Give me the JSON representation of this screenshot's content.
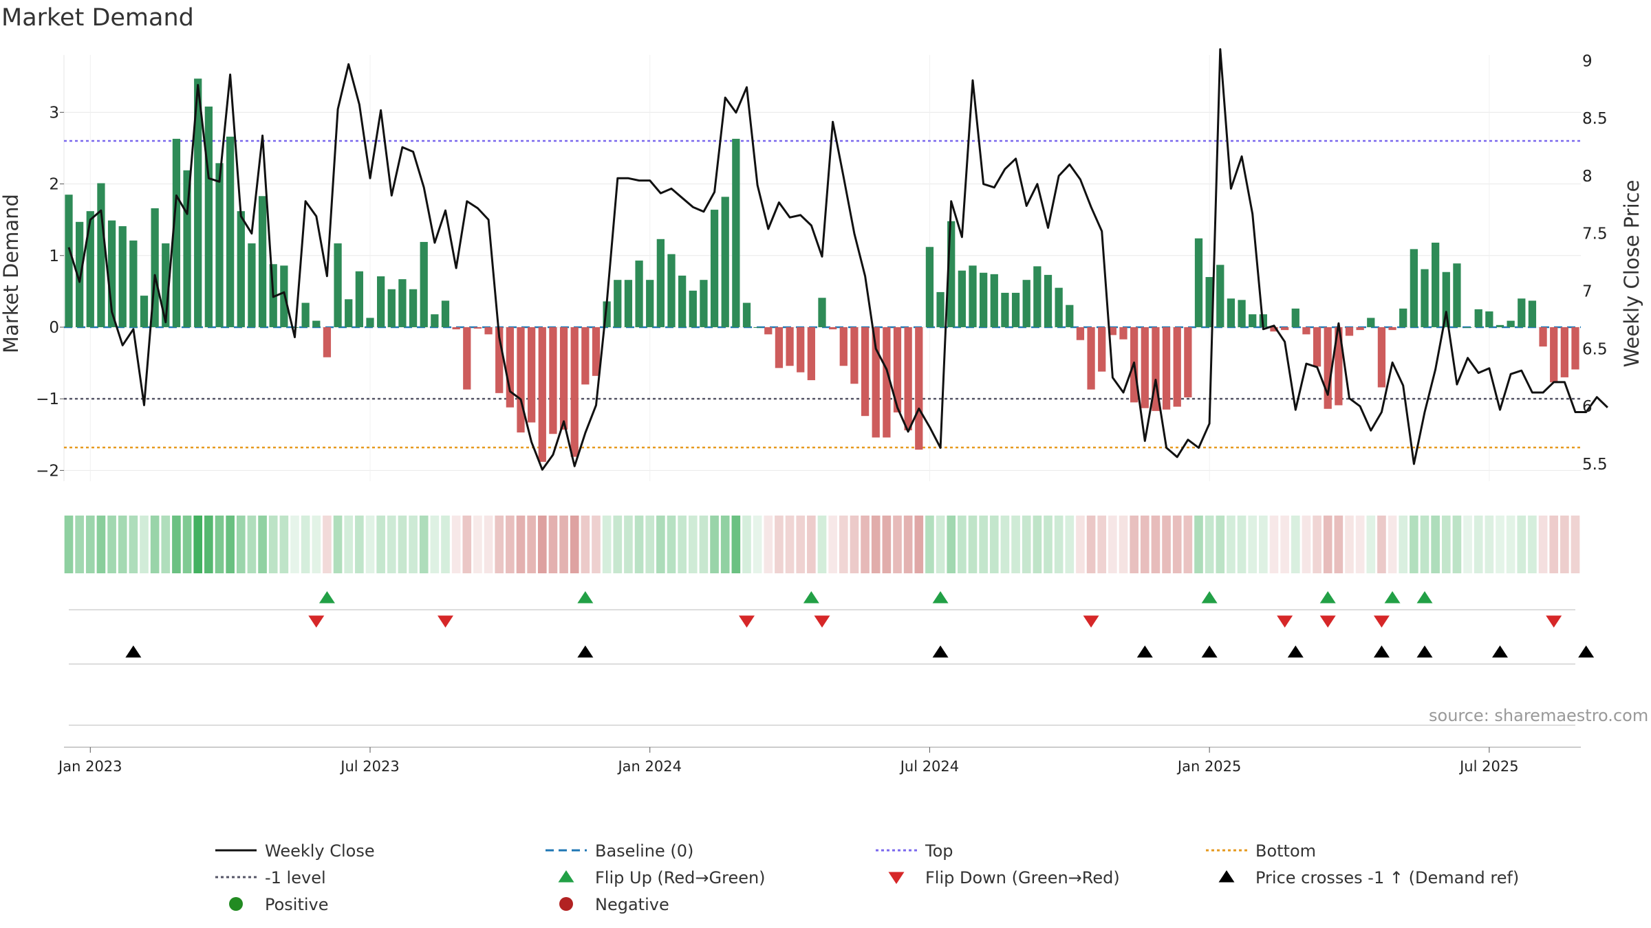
{
  "title": "Market Demand",
  "source": "source: sharemaestro.com",
  "colors": {
    "positive": "#2e8b57",
    "negative": "#cd5c5c",
    "price": "#111111",
    "baseline": "#1f77b4",
    "top": "#7b68ee",
    "bottom": "#e69a1f",
    "minus_one": "#555566",
    "flip_up": "#22a046",
    "flip_down": "#d62728",
    "cross": "#000000"
  },
  "chart_data": {
    "type": "bar",
    "title": "Market Demand",
    "ylabel": "Market Demand",
    "y2label": "Weekly Close Price",
    "ylim": [
      -2.15,
      3.8
    ],
    "y2lim": [
      5.35,
      9.05
    ],
    "yticks": [
      "3",
      "2",
      "1",
      "0",
      "−1",
      "−2"
    ],
    "y2ticks": [
      "9",
      "8.5",
      "8",
      "7.5",
      "7",
      "6.5",
      "6",
      "5.5"
    ],
    "xticks": [
      "Jan 2023",
      "Jul 2023",
      "Jan 2024",
      "Jul 2024",
      "Jan 2025",
      "Jul 2025"
    ],
    "xtick_weeks": [
      0,
      26,
      52,
      78,
      104,
      130
    ],
    "start_week": -2,
    "reference_lines": {
      "top": 2.6,
      "minus_one": -1.0,
      "bottom": -1.68,
      "baseline": 0
    },
    "demand": [
      1.85,
      1.47,
      1.62,
      2.01,
      1.49,
      1.41,
      1.21,
      0.44,
      1.66,
      1.17,
      2.63,
      2.19,
      3.47,
      3.08,
      2.29,
      2.66,
      1.62,
      1.17,
      1.83,
      0.88,
      0.86,
      0.0,
      0.34,
      0.09,
      -0.42,
      1.17,
      0.39,
      0.78,
      0.13,
      0.71,
      0.53,
      0.67,
      0.53,
      1.19,
      0.18,
      0.37,
      -0.03,
      -0.87,
      -0.02,
      -0.1,
      -0.92,
      -1.12,
      -1.47,
      -1.33,
      -1.88,
      -1.49,
      -1.43,
      -1.81,
      -0.8,
      -0.68,
      0.36,
      0.66,
      0.66,
      0.93,
      0.66,
      1.23,
      1.02,
      0.72,
      0.51,
      0.66,
      1.64,
      1.82,
      2.63,
      0.34,
      0.0,
      -0.1,
      -0.57,
      -0.54,
      -0.63,
      -0.74,
      0.41,
      -0.03,
      -0.54,
      -0.79,
      -1.24,
      -1.54,
      -1.54,
      -1.19,
      -1.44,
      -1.71,
      1.12,
      0.49,
      1.48,
      0.79,
      0.86,
      0.76,
      0.74,
      0.48,
      0.48,
      0.66,
      0.85,
      0.73,
      0.55,
      0.31,
      -0.18,
      -0.87,
      -0.62,
      -0.11,
      -0.17,
      -1.05,
      -1.13,
      -1.17,
      -1.15,
      -1.11,
      -0.98,
      1.24,
      0.7,
      0.87,
      0.4,
      0.38,
      0.18,
      0.18,
      -0.06,
      -0.04,
      0.26,
      -0.1,
      -0.55,
      -1.14,
      -1.09,
      -0.12,
      -0.04,
      0.13,
      -0.84,
      -0.04,
      0.26,
      1.09,
      0.81,
      1.18,
      0.77,
      0.89,
      0.0,
      0.25,
      0.22,
      0.03,
      0.09,
      0.4,
      0.37,
      -0.27,
      -0.77,
      -0.7,
      -0.59
    ],
    "price": [
      7.38,
      7.08,
      7.62,
      7.7,
      6.82,
      6.53,
      6.67,
      6.01,
      7.14,
      6.73,
      7.83,
      7.67,
      8.79,
      7.98,
      7.95,
      8.88,
      7.65,
      7.5,
      8.35,
      6.95,
      6.99,
      6.6,
      7.78,
      7.65,
      7.13,
      8.58,
      8.97,
      8.62,
      7.98,
      8.57,
      7.83,
      8.25,
      8.21,
      7.9,
      7.42,
      7.7,
      7.2,
      7.78,
      7.72,
      7.62,
      6.6,
      6.13,
      6.06,
      5.69,
      5.45,
      5.58,
      5.87,
      5.48,
      5.77,
      6.01,
      6.9,
      7.98,
      7.98,
      7.96,
      7.96,
      7.85,
      7.89,
      7.81,
      7.73,
      7.69,
      7.86,
      8.68,
      8.55,
      8.77,
      7.92,
      7.54,
      7.77,
      7.64,
      7.66,
      7.57,
      7.3,
      8.47,
      7.99,
      7.5,
      7.13,
      6.5,
      6.32,
      5.99,
      5.78,
      5.98,
      5.82,
      5.64,
      7.78,
      7.47,
      8.83,
      7.93,
      7.9,
      8.06,
      8.15,
      7.74,
      7.93,
      7.55,
      8.0,
      8.1,
      7.97,
      7.73,
      7.52,
      6.25,
      6.12,
      6.38,
      5.7,
      6.23,
      5.64,
      5.56,
      5.71,
      5.64,
      5.85,
      9.1,
      7.89,
      8.17,
      7.67,
      6.67,
      6.7,
      6.56,
      5.97,
      6.37,
      6.34,
      6.1,
      6.72,
      6.07,
      6.0,
      5.79,
      5.95,
      6.38,
      6.18,
      5.5,
      5.95,
      6.32,
      6.82,
      6.19,
      6.42,
      6.29,
      6.33,
      5.97,
      6.28,
      6.31,
      6.12,
      6.12,
      6.21,
      6.21,
      5.95,
      5.95,
      6.08,
      5.99
    ],
    "flip_up_weeks": [
      22,
      46,
      67,
      79,
      104,
      115,
      121,
      124
    ],
    "flip_down_weeks": [
      21,
      33,
      61,
      68,
      93,
      111,
      115,
      120,
      136
    ],
    "cross_weeks": [
      4,
      46,
      79,
      98,
      104,
      112,
      120,
      124,
      131,
      139
    ],
    "legend": [
      {
        "label": "Weekly Close",
        "kind": "line-solid"
      },
      {
        "label": "Baseline (0)",
        "kind": "line-dash"
      },
      {
        "label": "Top",
        "kind": "line-dot-purple"
      },
      {
        "label": "Bottom",
        "kind": "line-dot-orange"
      },
      {
        "label": "-1 level",
        "kind": "line-dot-gray"
      },
      {
        "label": "Flip Up (Red→Green)",
        "kind": "tri-up-green"
      },
      {
        "label": "Flip Down (Green→Red)",
        "kind": "tri-down-red"
      },
      {
        "label": "Price crosses -1 ↑ (Demand ref)",
        "kind": "tri-up-black"
      },
      {
        "label": "Positive",
        "kind": "dot-green"
      },
      {
        "label": "Negative",
        "kind": "dot-red"
      }
    ]
  }
}
